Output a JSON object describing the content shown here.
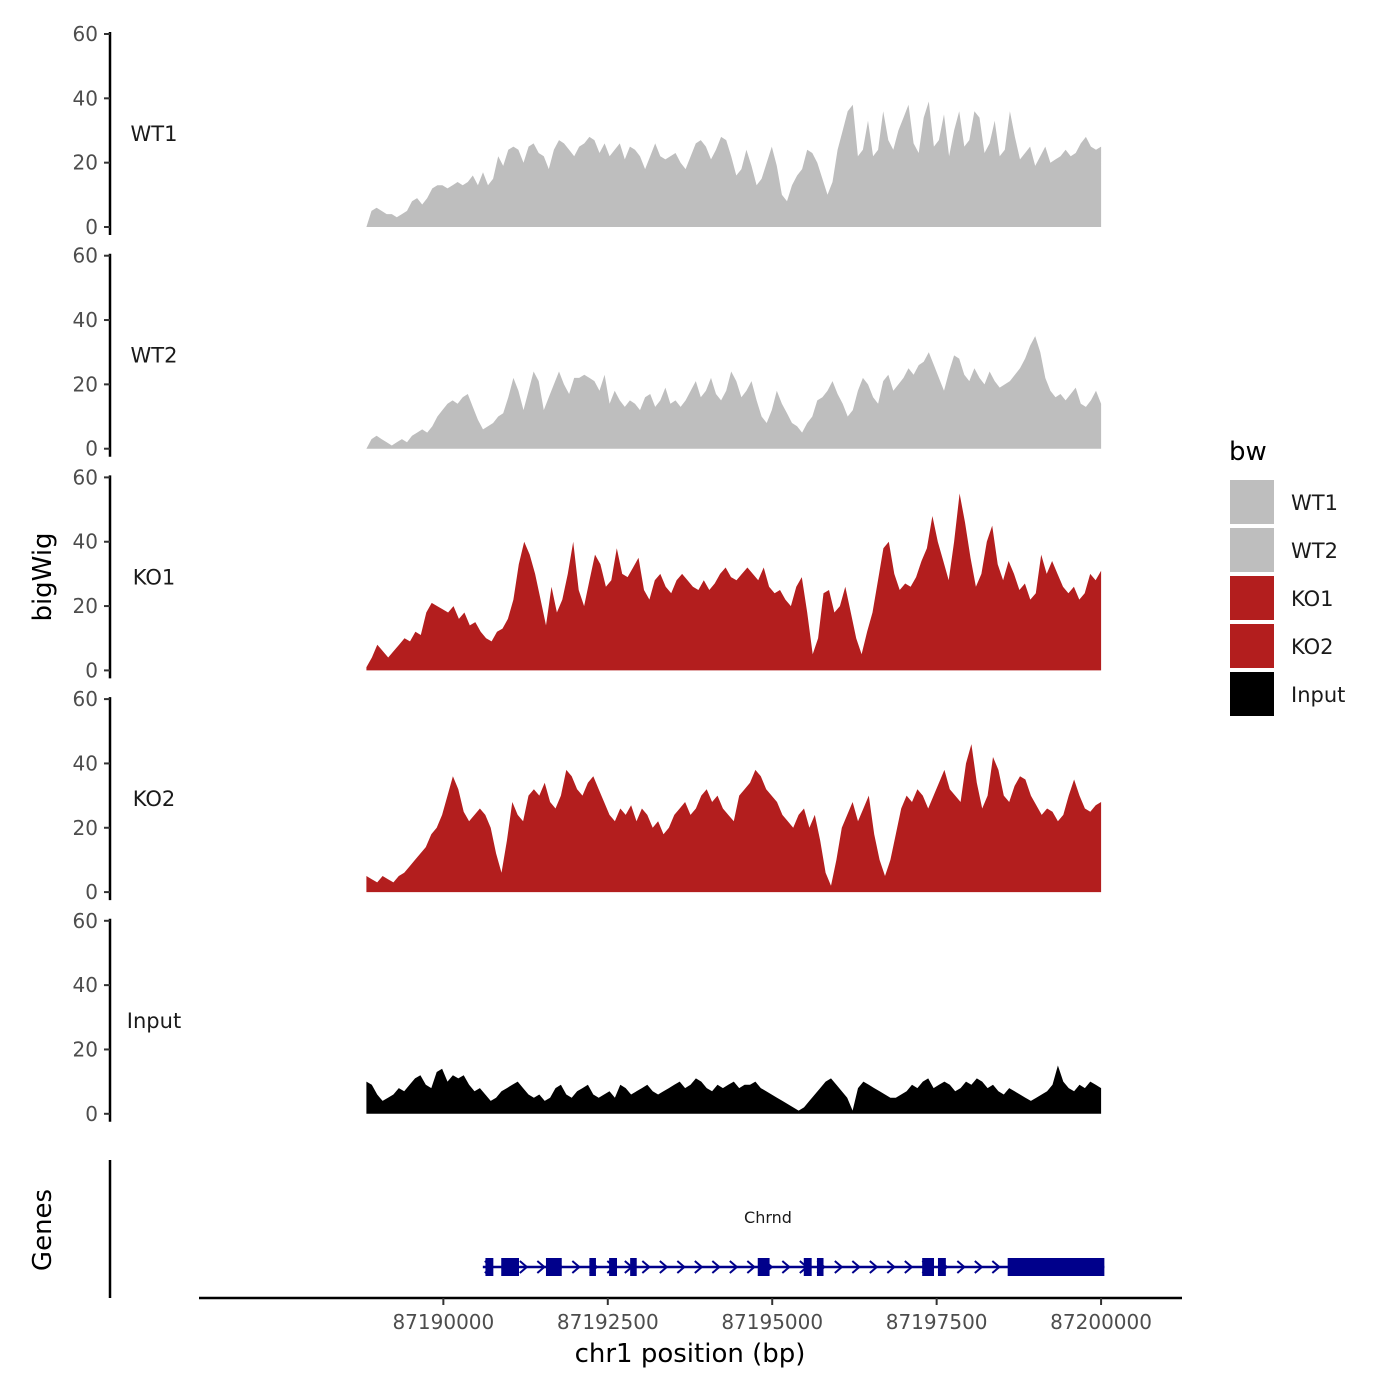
{
  "chart_data": {
    "type": "area",
    "title": "",
    "ylabel": "bigWig",
    "xlabel": "chr1 position (bp)",
    "ylim": [
      0,
      60
    ],
    "yticks": [
      0,
      20,
      40,
      60
    ],
    "ytick_labels": [
      "0",
      "20",
      "40",
      "60"
    ],
    "xlim": [
      87186300,
      87201200
    ],
    "xticks": [
      87190000,
      87192500,
      87195000,
      87197500,
      87200000
    ],
    "xtick_labels": [
      "87190000",
      "87192500",
      "87195000",
      "87197500",
      "87200000"
    ],
    "x_start": 87188800,
    "x_end": 87200000,
    "legend": {
      "title": "bw",
      "position": "right",
      "entries": [
        {
          "label": "WT1",
          "color": "#bebebe"
        },
        {
          "label": "WT2",
          "color": "#bebebe"
        },
        {
          "label": "KO1",
          "color": "#b31e1e"
        },
        {
          "label": "KO2",
          "color": "#b31e1e"
        },
        {
          "label": "Input",
          "color": "#000000"
        }
      ]
    },
    "series": [
      {
        "name": "WT1",
        "color": "#bebebe",
        "values": [
          0,
          5,
          6,
          5,
          4,
          4,
          3,
          4,
          5,
          8,
          9,
          7,
          9,
          12,
          13,
          13,
          12,
          13,
          14,
          13,
          14,
          16,
          13,
          17,
          13,
          15,
          22,
          19,
          24,
          25,
          24,
          20,
          25,
          26,
          23,
          22,
          18,
          24,
          27,
          26,
          24,
          22,
          25,
          26,
          28,
          27,
          23,
          26,
          22,
          24,
          26,
          21,
          25,
          24,
          22,
          18,
          22,
          26,
          22,
          21,
          22,
          23,
          20,
          18,
          22,
          26,
          27,
          25,
          21,
          24,
          28,
          27,
          22,
          16,
          18,
          24,
          19,
          13,
          15,
          20,
          25,
          19,
          10,
          8,
          13,
          16,
          18,
          24,
          23,
          20,
          15,
          10,
          14,
          24,
          30,
          36,
          38,
          22,
          24,
          33,
          22,
          24,
          36,
          27,
          24,
          30,
          34,
          38,
          26,
          23,
          34,
          39,
          25,
          27,
          35,
          22,
          30,
          36,
          25,
          27,
          36,
          34,
          23,
          26,
          33,
          22,
          24,
          36,
          28,
          21,
          23,
          25,
          19,
          22,
          25,
          20,
          21,
          22,
          24,
          22,
          23,
          26,
          28,
          25,
          24,
          25
        ]
      },
      {
        "name": "WT2",
        "color": "#bebebe",
        "values": [
          0,
          3,
          4,
          3,
          2,
          1,
          2,
          3,
          2,
          4,
          5,
          6,
          5,
          7,
          10,
          12,
          14,
          15,
          14,
          16,
          17,
          13,
          9,
          6,
          7,
          8,
          10,
          11,
          16,
          22,
          18,
          12,
          18,
          24,
          21,
          12,
          16,
          20,
          24,
          20,
          17,
          22,
          22,
          23,
          22,
          21,
          18,
          23,
          14,
          18,
          15,
          13,
          15,
          14,
          12,
          16,
          17,
          13,
          15,
          19,
          14,
          15,
          13,
          15,
          18,
          21,
          16,
          18,
          22,
          17,
          15,
          18,
          24,
          21,
          16,
          18,
          21,
          15,
          10,
          8,
          12,
          18,
          14,
          11,
          8,
          7,
          5,
          8,
          10,
          15,
          16,
          18,
          21,
          17,
          14,
          10,
          12,
          18,
          22,
          20,
          16,
          14,
          21,
          23,
          18,
          20,
          22,
          25,
          23,
          26,
          27,
          30,
          26,
          22,
          18,
          24,
          29,
          28,
          23,
          21,
          25,
          22,
          20,
          24,
          21,
          19,
          20,
          21,
          23,
          25,
          28,
          32,
          35,
          30,
          22,
          18,
          16,
          17,
          15,
          17,
          19,
          14,
          13,
          15,
          18,
          14
        ]
      },
      {
        "name": "KO1",
        "color": "#b31e1e",
        "values": [
          1,
          4,
          8,
          6,
          4,
          6,
          8,
          10,
          9,
          12,
          11,
          18,
          21,
          20,
          19,
          18,
          20,
          16,
          18,
          14,
          15,
          12,
          10,
          9,
          12,
          13,
          16,
          22,
          33,
          40,
          36,
          30,
          22,
          14,
          26,
          18,
          22,
          30,
          40,
          25,
          20,
          28,
          36,
          33,
          26,
          28,
          38,
          30,
          29,
          32,
          35,
          25,
          22,
          28,
          30,
          26,
          24,
          28,
          30,
          28,
          26,
          25,
          28,
          25,
          27,
          30,
          32,
          29,
          28,
          30,
          32,
          30,
          28,
          32,
          26,
          24,
          25,
          22,
          20,
          26,
          29,
          18,
          5,
          10,
          24,
          25,
          18,
          20,
          26,
          18,
          10,
          5,
          12,
          18,
          28,
          38,
          40,
          30,
          25,
          27,
          26,
          29,
          34,
          38,
          48,
          40,
          34,
          28,
          40,
          55,
          46,
          35,
          26,
          30,
          40,
          45,
          33,
          28,
          34,
          30,
          25,
          27,
          22,
          24,
          36,
          30,
          34,
          30,
          26,
          24,
          26,
          22,
          24,
          30,
          28,
          31
        ]
      },
      {
        "name": "KO2",
        "color": "#b31e1e",
        "values": [
          5,
          4,
          3,
          5,
          4,
          3,
          5,
          6,
          8,
          10,
          12,
          14,
          18,
          20,
          24,
          30,
          36,
          32,
          25,
          22,
          24,
          26,
          24,
          20,
          12,
          6,
          16,
          28,
          24,
          22,
          30,
          32,
          30,
          34,
          28,
          26,
          30,
          38,
          36,
          32,
          30,
          34,
          36,
          32,
          28,
          24,
          22,
          26,
          24,
          27,
          22,
          26,
          24,
          20,
          22,
          18,
          20,
          24,
          26,
          28,
          24,
          26,
          30,
          32,
          28,
          30,
          26,
          24,
          22,
          30,
          32,
          34,
          38,
          36,
          32,
          30,
          28,
          24,
          22,
          20,
          24,
          26,
          20,
          24,
          16,
          6,
          2,
          10,
          20,
          24,
          28,
          22,
          26,
          30,
          18,
          10,
          5,
          10,
          18,
          26,
          30,
          28,
          32,
          30,
          26,
          30,
          34,
          38,
          32,
          30,
          28,
          40,
          46,
          34,
          26,
          30,
          42,
          38,
          30,
          28,
          33,
          36,
          35,
          30,
          27,
          24,
          26,
          25,
          22,
          24,
          30,
          35,
          30,
          26,
          25,
          27,
          28
        ]
      },
      {
        "name": "Input",
        "color": "#000000",
        "values": [
          10,
          9,
          6,
          4,
          5,
          6,
          8,
          7,
          9,
          11,
          12,
          9,
          8,
          13,
          14,
          10,
          12,
          11,
          12,
          9,
          7,
          8,
          6,
          4,
          5,
          7,
          8,
          9,
          10,
          8,
          6,
          5,
          6,
          4,
          5,
          8,
          9,
          6,
          5,
          7,
          8,
          9,
          6,
          5,
          6,
          7,
          5,
          9,
          8,
          6,
          7,
          8,
          9,
          7,
          6,
          7,
          8,
          9,
          10,
          8,
          9,
          11,
          10,
          8,
          7,
          9,
          8,
          9,
          10,
          8,
          9,
          9,
          10,
          8,
          7,
          6,
          5,
          4,
          3,
          2,
          1,
          2,
          4,
          6,
          8,
          10,
          11,
          9,
          7,
          5,
          1,
          8,
          10,
          9,
          8,
          7,
          6,
          5,
          5,
          6,
          7,
          9,
          8,
          10,
          11,
          8,
          9,
          10,
          9,
          7,
          8,
          10,
          9,
          11,
          10,
          8,
          9,
          7,
          6,
          8,
          7,
          6,
          5,
          4,
          5,
          6,
          7,
          9,
          15,
          10,
          8,
          7,
          9,
          8,
          10,
          9,
          8
        ]
      }
    ],
    "genes": [
      {
        "name": "Chrnd",
        "start": 87190600,
        "end": 87200050,
        "strand": "+",
        "exons": [
          [
            87190640,
            87190760
          ],
          [
            87190880,
            87191150
          ],
          [
            87191560,
            87191800
          ],
          [
            87192220,
            87192320
          ],
          [
            87192520,
            87192640
          ],
          [
            87192840,
            87192940
          ],
          [
            87194780,
            87194960
          ],
          [
            87195480,
            87195600
          ],
          [
            87195680,
            87195780
          ],
          [
            87197280,
            87197460
          ],
          [
            87197520,
            87197640
          ],
          [
            87198580,
            87200050
          ]
        ],
        "color": "#00008b"
      }
    ],
    "genes_label": "Genes"
  }
}
